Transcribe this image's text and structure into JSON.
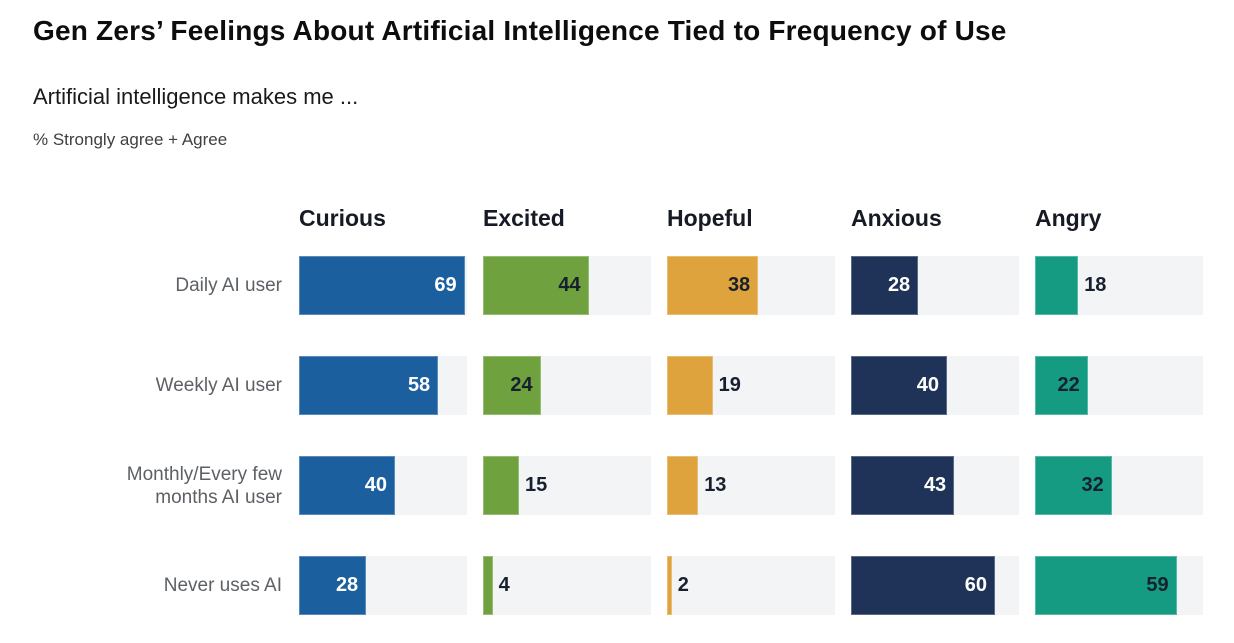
{
  "page": {
    "title": "Gen Zers’ Feelings About Artificial Intelligence Tied to Frequency of Use",
    "subtitle": "Artificial intelligence makes me ...",
    "note": "% Strongly agree + Agree"
  },
  "chart_data": {
    "type": "bar",
    "orientation": "horizontal",
    "layout": "small-multiples grid: one bar column per emotion, one row per usage frequency",
    "title": "Gen Zers’ Feelings About Artificial Intelligence Tied to Frequency of Use",
    "subtitle": "Artificial intelligence makes me ...",
    "note": "% Strongly agree + Agree",
    "unit": "percent",
    "xlim": [
      0,
      70
    ],
    "grid": false,
    "track_color": "#f3f4f6",
    "value_label_inside_min": 20,
    "columns": [
      {
        "label": "Curious",
        "color": "#1c5f9e",
        "value_text_color": "#ffffff"
      },
      {
        "label": "Excited",
        "color": "#6fa23f",
        "value_text_color": "#17202e"
      },
      {
        "label": "Hopeful",
        "color": "#dfa33d",
        "value_text_color": "#17202e"
      },
      {
        "label": "Anxious",
        "color": "#1e3357",
        "value_text_color": "#ffffff"
      },
      {
        "label": "Angry",
        "color": "#159b81",
        "value_text_color": "#17202e"
      }
    ],
    "categories": [
      "Daily AI user",
      "Weekly AI user",
      "Monthly/Every few months AI user",
      "Never uses AI"
    ],
    "rows": [
      {
        "label": "Daily AI user",
        "label_lines": [
          "Daily AI user"
        ],
        "values": [
          69,
          44,
          38,
          28,
          18
        ]
      },
      {
        "label": "Weekly AI user",
        "label_lines": [
          "Weekly AI user"
        ],
        "values": [
          58,
          24,
          19,
          40,
          22
        ]
      },
      {
        "label": "Monthly/Every few months AI user",
        "label_lines": [
          "Monthly/Every few",
          "months AI user"
        ],
        "values": [
          40,
          15,
          13,
          43,
          32
        ]
      },
      {
        "label": "Never uses AI",
        "label_lines": [
          "Never uses AI"
        ],
        "values": [
          28,
          4,
          2,
          60,
          59
        ]
      }
    ],
    "series": [
      {
        "name": "Curious",
        "values": [
          69,
          58,
          40,
          28
        ]
      },
      {
        "name": "Excited",
        "values": [
          44,
          24,
          15,
          4
        ]
      },
      {
        "name": "Hopeful",
        "values": [
          38,
          19,
          13,
          2
        ]
      },
      {
        "name": "Anxious",
        "values": [
          28,
          40,
          43,
          60
        ]
      },
      {
        "name": "Angry",
        "values": [
          18,
          22,
          32,
          59
        ]
      }
    ]
  }
}
